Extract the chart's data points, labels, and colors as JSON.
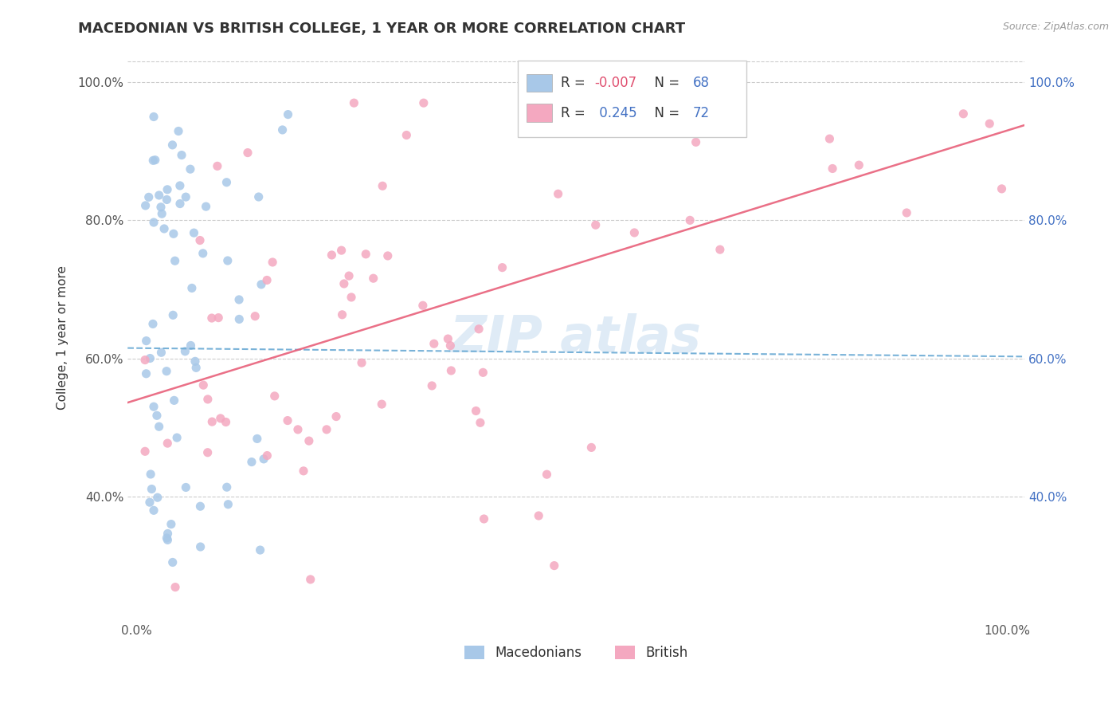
{
  "title": "MACEDONIAN VS BRITISH COLLEGE, 1 YEAR OR MORE CORRELATION CHART",
  "source": "Source: ZipAtlas.com",
  "ylabel": "College, 1 year or more",
  "macedonian_R": -0.007,
  "macedonian_N": 68,
  "british_R": 0.245,
  "british_N": 72,
  "macedonian_color": "#a8c8e8",
  "british_color": "#f4a8c0",
  "macedonian_line_color": "#6aaad4",
  "british_line_color": "#e8607a",
  "legend_label_mac": "Macedonians",
  "legend_label_brit": "British",
  "R_color_neg": "#e05070",
  "R_color_pos": "#4472c4",
  "N_color": "#4472c4",
  "tick_color_right": "#4472c4",
  "tick_color_left": "#555555",
  "watermark_color": "#b8d4ec",
  "mac_line_intercept": 0.615,
  "mac_line_slope": -0.012,
  "brit_line_intercept": 0.54,
  "brit_line_slope": 0.39,
  "xlim_min": -0.01,
  "xlim_max": 1.02,
  "ylim_min": 0.22,
  "ylim_max": 1.04,
  "yticks": [
    0.4,
    0.6,
    0.8,
    1.0
  ],
  "ytick_labels": [
    "40.0%",
    "60.0%",
    "80.0%",
    "100.0%"
  ],
  "xticks": [
    0.0,
    1.0
  ],
  "xtick_labels": [
    "0.0%",
    "100.0%"
  ]
}
